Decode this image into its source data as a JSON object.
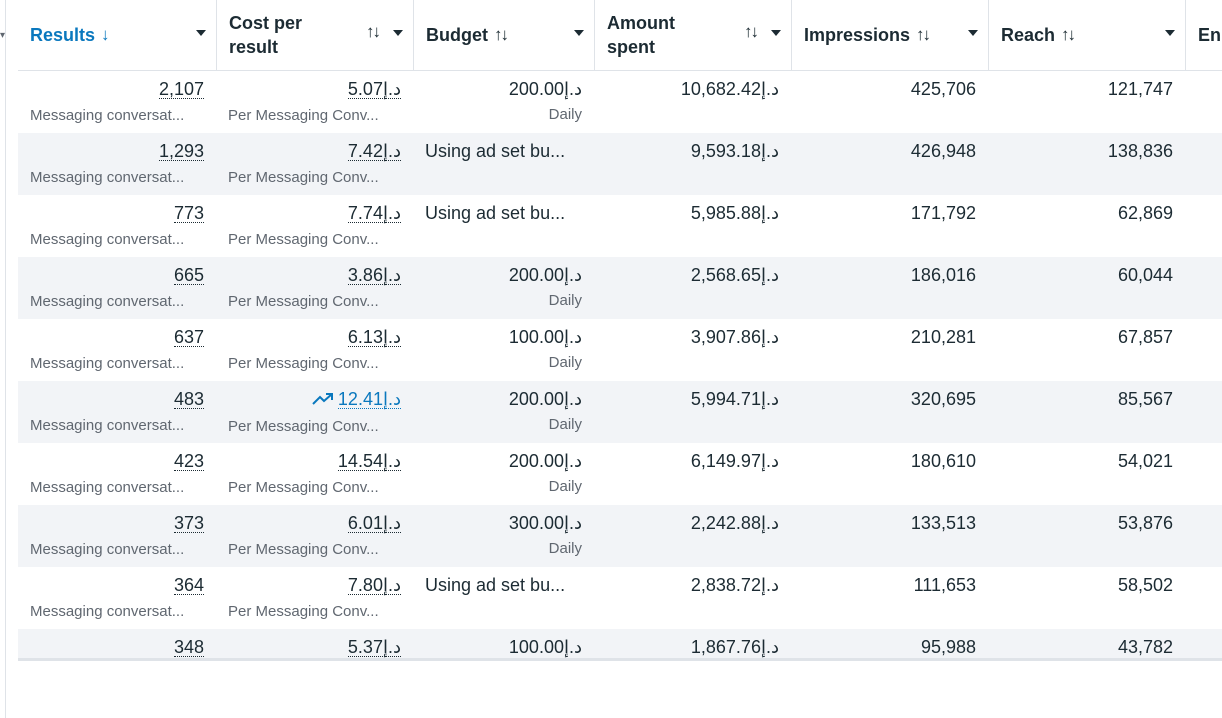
{
  "columns": {
    "results": "Results",
    "cost_per_result": "Cost per result",
    "budget": "Budget",
    "amount_spent": "Amount spent",
    "impressions": "Impressions",
    "reach": "Reach",
    "ends": "En"
  },
  "icons": {
    "sort_desc": "↓",
    "sort_both": "↑↓",
    "trend_up": "trend-up-icon"
  },
  "colors": {
    "accent": "#0a78be",
    "text": "#1c2b33",
    "muted": "#606770",
    "row_alt": "#f2f4f7",
    "border": "#dfe3e8"
  },
  "rows": [
    {
      "results": "2,107",
      "results_sub": "Messaging conversat...",
      "cost": "5.07د.إ",
      "cost_sub": "Per Messaging Conv...",
      "budget": "200.00د.إ",
      "budget_sub": "Daily",
      "spent": "10,682.42د.إ",
      "impressions": "425,706",
      "reach": "121,747"
    },
    {
      "results": "1,293",
      "results_sub": "Messaging conversat...",
      "cost": "7.42د.إ",
      "cost_sub": "Per Messaging Conv...",
      "budget": "Using ad set bu...",
      "budget_sub": "",
      "spent": "9,593.18د.إ",
      "impressions": "426,948",
      "reach": "138,836"
    },
    {
      "results": "773",
      "results_sub": "Messaging conversat...",
      "cost": "7.74د.إ",
      "cost_sub": "Per Messaging Conv...",
      "budget": "Using ad set bu...",
      "budget_sub": "",
      "spent": "5,985.88د.إ",
      "impressions": "171,792",
      "reach": "62,869"
    },
    {
      "results": "665",
      "results_sub": "Messaging conversat...",
      "cost": "3.86د.إ",
      "cost_sub": "Per Messaging Conv...",
      "budget": "200.00د.إ",
      "budget_sub": "Daily",
      "spent": "2,568.65د.إ",
      "impressions": "186,016",
      "reach": "60,044"
    },
    {
      "results": "637",
      "results_sub": "Messaging conversat...",
      "cost": "6.13د.إ",
      "cost_sub": "Per Messaging Conv...",
      "budget": "100.00د.إ",
      "budget_sub": "Daily",
      "spent": "3,907.86د.إ",
      "impressions": "210,281",
      "reach": "67,857"
    },
    {
      "results": "483",
      "results_sub": "Messaging conversat...",
      "cost": "12.41د.إ",
      "cost_sub": "Per Messaging Conv...",
      "budget": "200.00د.إ",
      "budget_sub": "Daily",
      "spent": "5,994.71د.إ",
      "impressions": "320,695",
      "reach": "85,567"
    },
    {
      "results": "423",
      "results_sub": "Messaging conversat...",
      "cost": "14.54د.إ",
      "cost_sub": "Per Messaging Conv...",
      "budget": "200.00د.إ",
      "budget_sub": "Daily",
      "spent": "6,149.97د.إ",
      "impressions": "180,610",
      "reach": "54,021"
    },
    {
      "results": "373",
      "results_sub": "Messaging conversat...",
      "cost": "6.01د.إ",
      "cost_sub": "Per Messaging Conv...",
      "budget": "300.00د.إ",
      "budget_sub": "Daily",
      "spent": "2,242.88د.إ",
      "impressions": "133,513",
      "reach": "53,876"
    },
    {
      "results": "364",
      "results_sub": "Messaging conversat...",
      "cost": "7.80د.إ",
      "cost_sub": "Per Messaging Conv...",
      "budget": "Using ad set bu...",
      "budget_sub": "",
      "spent": "2,838.72د.إ",
      "impressions": "111,653",
      "reach": "58,502"
    },
    {
      "results": "348",
      "results_sub": "",
      "cost": "5.37د.إ",
      "cost_sub": "",
      "budget": "100.00د.إ",
      "budget_sub": "",
      "spent": "1,867.76د.إ",
      "impressions": "95,988",
      "reach": "43,782"
    }
  ]
}
